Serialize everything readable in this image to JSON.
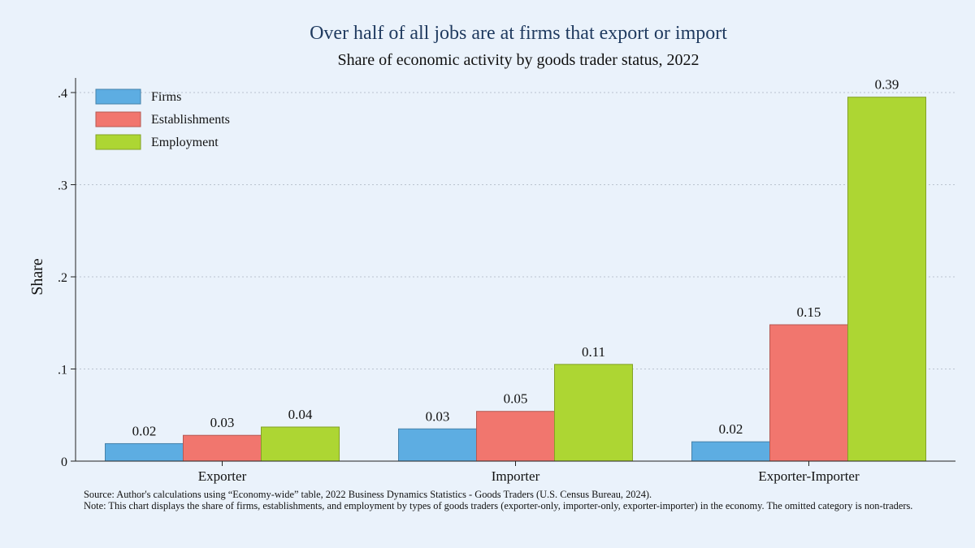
{
  "chart_data": {
    "type": "bar",
    "title": "Over half of all jobs are at firms that export or import",
    "subtitle": "Share of economic activity by goods trader status, 2022",
    "xlabel": "",
    "ylabel": "Share",
    "ylim": [
      0,
      0.4
    ],
    "yticks": [
      {
        "value": 0,
        "label": "0"
      },
      {
        "value": 0.1,
        "label": ".1"
      },
      {
        "value": 0.2,
        "label": ".2"
      },
      {
        "value": 0.3,
        "label": ".3"
      },
      {
        "value": 0.4,
        "label": ".4"
      }
    ],
    "grid": true,
    "legend_position": "top-left",
    "categories": [
      "Exporter",
      "Importer",
      "Exporter-Importer"
    ],
    "series": [
      {
        "name": "Firms",
        "color": "#5dade2",
        "values": [
          0.019,
          0.035,
          0.021
        ],
        "labels": [
          "0.02",
          "0.03",
          "0.02"
        ]
      },
      {
        "name": "Establishments",
        "color": "#f1766e",
        "values": [
          0.028,
          0.054,
          0.148
        ],
        "labels": [
          "0.03",
          "0.05",
          "0.15"
        ]
      },
      {
        "name": "Employment",
        "color": "#add633",
        "values": [
          0.037,
          0.105,
          0.395
        ],
        "labels": [
          "0.04",
          "0.11",
          "0.39"
        ]
      }
    ]
  },
  "footnote": {
    "source": "Source: Author's calculations using “Economy-wide” table, 2022 Business Dynamics Statistics - Goods Traders (U.S. Census Bureau, 2024).",
    "note": "Note: This chart displays the share of firms, establishments, and employment by types of goods traders (exporter-only, importer-only, exporter-importer) in the economy. The omitted category is non-traders."
  }
}
